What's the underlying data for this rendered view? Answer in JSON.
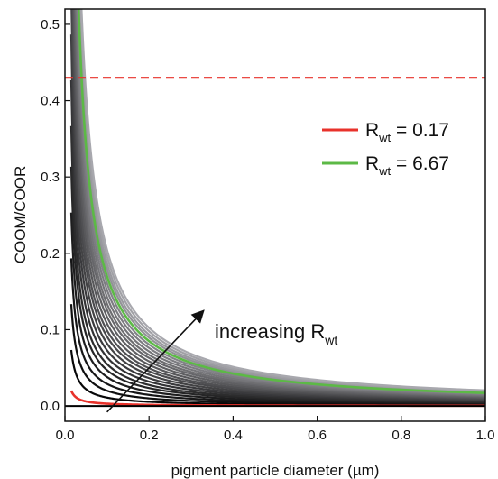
{
  "chart_data": {
    "type": "line",
    "xlabel": "pigment particle diameter (µm)",
    "ylabel": "COOM/COOR",
    "xlim": [
      0,
      1.0
    ],
    "ylim": [
      -0.02,
      0.52
    ],
    "x_ticks": [
      "0.0",
      "0.2",
      "0.4",
      "0.6",
      "0.8",
      "1.0"
    ],
    "y_ticks": [
      "0.0",
      "0.1",
      "0.2",
      "0.3",
      "0.4",
      "0.5"
    ],
    "grid": false,
    "reference_lines": [
      {
        "axis": "y",
        "value": 0.43,
        "style": "dashed",
        "color": "#e8322b"
      },
      {
        "axis": "y",
        "value": 0.0,
        "style": "solid",
        "color": "#000000"
      }
    ],
    "curve_family": {
      "count": 24,
      "model": "y = k / x",
      "x_start": 0.015,
      "x_end": 1.0,
      "k_values": [
        0.0003,
        0.0011,
        0.002,
        0.0029,
        0.0038,
        0.0047,
        0.0055,
        0.0064,
        0.0073,
        0.0082,
        0.0091,
        0.0099,
        0.0108,
        0.0117,
        0.0126,
        0.0134,
        0.0143,
        0.0152,
        0.0161,
        0.017,
        0.0179,
        0.0187,
        0.0196,
        0.0205
      ],
      "color_from": "#000000",
      "color_to": "#a8a8ae",
      "highlight": [
        {
          "index": 0,
          "color": "#e8322b"
        },
        {
          "index": 19,
          "color": "#5cb946"
        }
      ]
    },
    "series": [
      {
        "name": "R",
        "subscript": "wt",
        "value_text": " = 0.17",
        "color": "#e8322b",
        "k": 0.0003
      },
      {
        "name": "R",
        "subscript": "wt",
        "value_text": " = 6.67",
        "color": "#5cb946",
        "k": 0.017
      }
    ],
    "legend_position": "right",
    "annotation": {
      "text": "increasing R",
      "subscript": "wt",
      "arrow_from": [
        0.1,
        -0.008
      ],
      "arrow_to": [
        0.33,
        0.125
      ]
    }
  }
}
